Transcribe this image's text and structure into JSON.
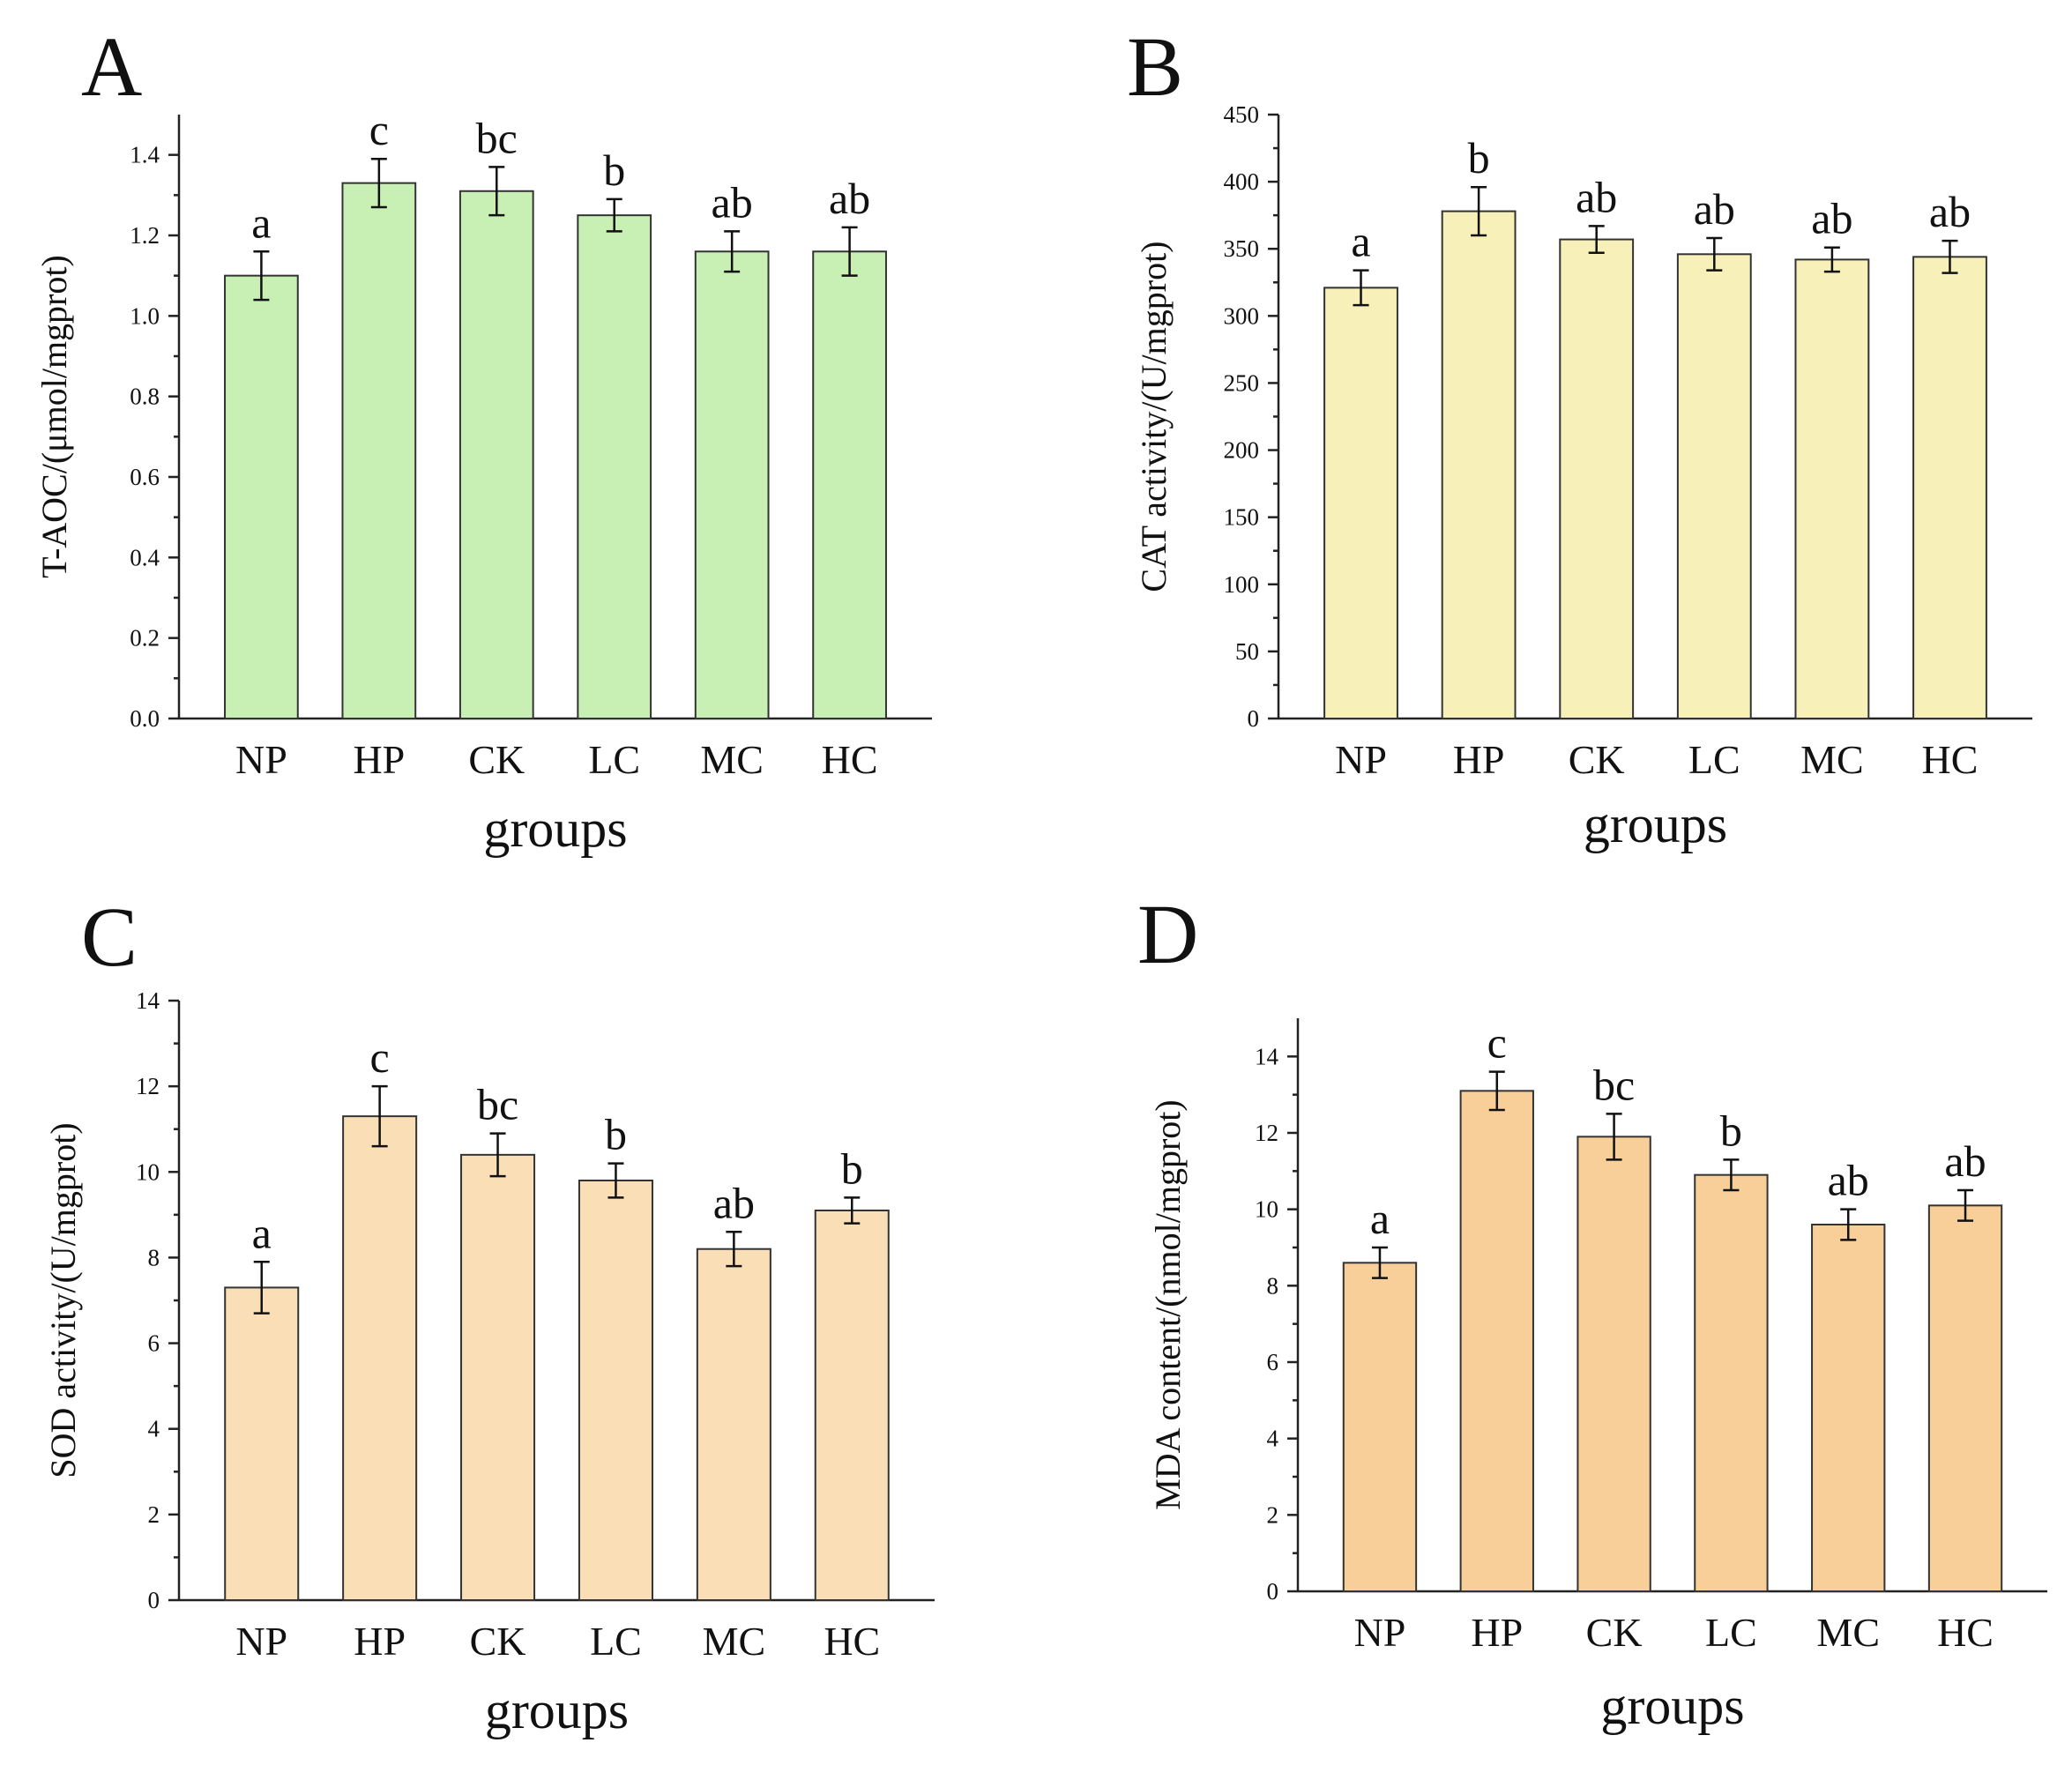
{
  "chart_data": [
    {
      "panel": "A",
      "type": "bar",
      "categories": [
        "NP",
        "HP",
        "CK",
        "LC",
        "MC",
        "HC"
      ],
      "values": [
        1.1,
        1.33,
        1.31,
        1.25,
        1.16,
        1.16
      ],
      "errors": [
        0.06,
        0.06,
        0.06,
        0.04,
        0.05,
        0.06
      ],
      "significance": [
        "a",
        "c",
        "bc",
        "b",
        "ab",
        "ab"
      ],
      "title": "",
      "xlabel": "groups",
      "ylabel": "T-AOC/(μmol/mgprot)",
      "ylim": [
        0,
        1.5
      ],
      "yticks": [
        0.0,
        0.2,
        0.4,
        0.6,
        0.8,
        1.0,
        1.2,
        1.4
      ],
      "ytick_labels": [
        "0.0",
        "0.2",
        "0.4",
        "0.6",
        "0.8",
        "1.0",
        "1.2",
        "1.4"
      ],
      "bar_color": "#c9f0b4",
      "grid": false
    },
    {
      "panel": "B",
      "type": "bar",
      "categories": [
        "NP",
        "HP",
        "CK",
        "LC",
        "MC",
        "HC"
      ],
      "values": [
        321,
        378,
        357,
        346,
        342,
        344
      ],
      "errors": [
        13,
        18,
        10,
        12,
        9,
        12
      ],
      "significance": [
        "a",
        "b",
        "ab",
        "ab",
        "ab",
        "ab"
      ],
      "title": "",
      "xlabel": "groups",
      "ylabel": "CAT activity/(U/mgprot)",
      "ylim": [
        0,
        450
      ],
      "yticks": [
        0,
        50,
        100,
        150,
        200,
        250,
        300,
        350,
        400,
        450
      ],
      "ytick_labels": [
        "0",
        "50",
        "100",
        "150",
        "200",
        "250",
        "300",
        "350",
        "400",
        "450"
      ],
      "bar_color": "#f7f0b8",
      "grid": false
    },
    {
      "panel": "C",
      "type": "bar",
      "categories": [
        "NP",
        "HP",
        "CK",
        "LC",
        "MC",
        "HC"
      ],
      "values": [
        7.3,
        11.3,
        10.4,
        9.8,
        8.2,
        9.1
      ],
      "errors": [
        0.6,
        0.7,
        0.5,
        0.4,
        0.4,
        0.3
      ],
      "significance": [
        "a",
        "c",
        "bc",
        "b",
        "ab",
        "b"
      ],
      "title": "",
      "xlabel": "groups",
      "ylabel": "SOD activity/(U/mgprot)",
      "ylim": [
        0,
        14
      ],
      "yticks": [
        0,
        2,
        4,
        6,
        8,
        10,
        12,
        14
      ],
      "ytick_labels": [
        "0",
        "2",
        "4",
        "6",
        "8",
        "10",
        "12",
        "14"
      ],
      "bar_color": "#fadfb6",
      "grid": false
    },
    {
      "panel": "D",
      "type": "bar",
      "categories": [
        "NP",
        "HP",
        "CK",
        "LC",
        "MC",
        "HC"
      ],
      "values": [
        8.6,
        13.1,
        11.9,
        10.9,
        9.6,
        10.1
      ],
      "errors": [
        0.4,
        0.5,
        0.6,
        0.4,
        0.4,
        0.4
      ],
      "significance": [
        "a",
        "c",
        "bc",
        "b",
        "ab",
        "ab"
      ],
      "title": "",
      "xlabel": "groups",
      "ylabel": "MDA content/(nmol/mgprot)",
      "ylim": [
        0,
        15
      ],
      "yticks": [
        0,
        2,
        4,
        6,
        8,
        10,
        12,
        14
      ],
      "ytick_labels": [
        "0",
        "2",
        "4",
        "6",
        "8",
        "10",
        "12",
        "14"
      ],
      "bar_color": "#f8cf98",
      "grid": false
    }
  ]
}
